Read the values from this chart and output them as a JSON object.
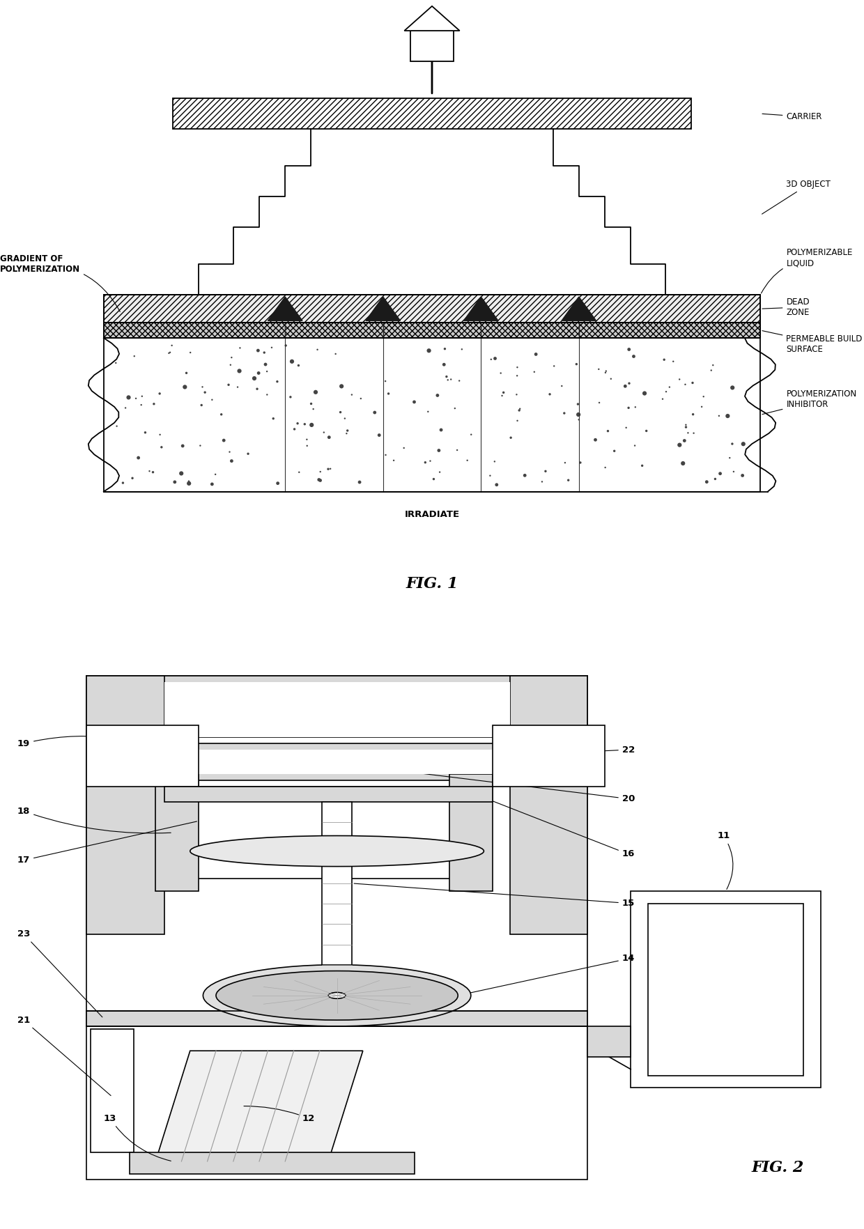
{
  "fig_width": 12.4,
  "fig_height": 17.64,
  "bg_color": "#ffffff",
  "lc": "#000000",
  "gray_light": "#d8d8d8",
  "gray_mid": "#c0c0c0",
  "gray_dark": "#a0a0a0",
  "fig1_label": "FIG. 1",
  "fig2_label": "FIG. 2",
  "label_carrier": "CARRIER",
  "label_3d": "3D OBJECT",
  "label_poly_liq": "POLYMERIZABLE\nLIQUID",
  "label_dead": "DEAD\nZONE",
  "label_permeable": "PERMEABLE BUILD\nSURFACE",
  "label_inhibitor": "POLYMERIZATION\nINHIBITOR",
  "label_gradient": "GRADIENT OF\nPOLYMERIZATION",
  "label_irradiate": "IRRADIATE"
}
